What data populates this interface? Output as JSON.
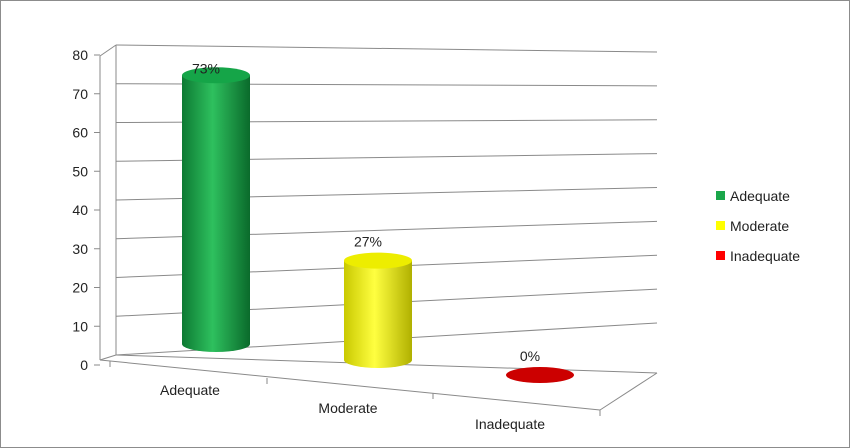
{
  "chart_data": {
    "type": "bar",
    "style": "3d-cylinder",
    "categories": [
      "Adequate",
      "Moderate",
      "Inadequate"
    ],
    "values": [
      73,
      27,
      0
    ],
    "data_labels": [
      "73%",
      "27%",
      "0%"
    ],
    "colors": [
      "#1aa64a",
      "#ffff00",
      "#ff0000"
    ],
    "yticks": [
      "0",
      "10",
      "20",
      "30",
      "40",
      "50",
      "60",
      "70",
      "80"
    ],
    "ylim": [
      0,
      80
    ],
    "grid": true,
    "legend": {
      "position": "right",
      "entries": [
        "Adequate",
        "Moderate",
        "Inadequate"
      ]
    }
  }
}
